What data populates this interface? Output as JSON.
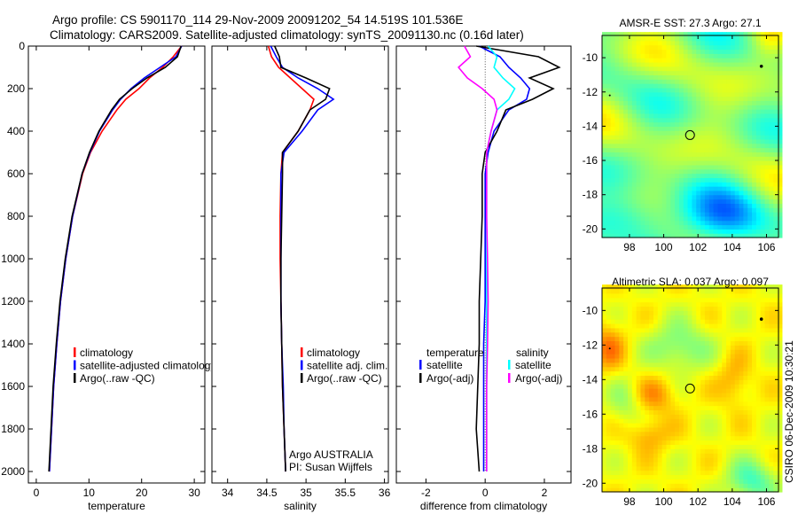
{
  "title": {
    "line1": "Argo profile: CS 5901170_114 29-Nov-2009 20091202_54 14.519S 101.536E",
    "line2": "Climatology: CARS2009. Satellite-adjusted climatology: synTS_20091130.nc (0.16d later)"
  },
  "colors": {
    "climatology": "#ff0000",
    "satellite": "#0000ff",
    "argo": "#000000",
    "sal_satellite": "#00ffff",
    "sal_argo": "#ff00ff"
  },
  "chart_data": [
    {
      "type": "line",
      "id": "temperature",
      "xlabel": "temperature",
      "ylabel": "",
      "xlim": [
        -1.5,
        32
      ],
      "ylim": [
        2054,
        0
      ],
      "xticks": [
        0,
        10,
        20,
        30
      ],
      "yticks": [
        0,
        200,
        400,
        600,
        800,
        1000,
        1200,
        1400,
        1600,
        1800,
        2000
      ],
      "depth": [
        0,
        50,
        100,
        150,
        200,
        250,
        300,
        400,
        500,
        600,
        800,
        1000,
        1200,
        1400,
        1600,
        1800,
        2000
      ],
      "series": [
        {
          "name": "climatology",
          "color": "#ff0000",
          "values": [
            27.6,
            26,
            24,
            21.5,
            19.5,
            17,
            15.3,
            12.5,
            10.3,
            8.8,
            6.9,
            5.6,
            4.6,
            3.9,
            3.3,
            2.9,
            2.5
          ]
        },
        {
          "name": "satellite-adjusted climatology",
          "color": "#0000ff",
          "values": [
            27.6,
            26.5,
            23.5,
            20.5,
            18,
            16,
            14.5,
            12,
            10.2,
            8.7,
            6.9,
            5.6,
            4.6,
            3.9,
            3.3,
            2.9,
            2.5
          ]
        },
        {
          "name": "Argo(..raw -QC)",
          "color": "#000000",
          "values": [
            27.5,
            26.8,
            24.5,
            21,
            18.2,
            15.8,
            14.3,
            11.9,
            10.1,
            8.7,
            6.8,
            5.5,
            4.5,
            3.8,
            3.2,
            2.8,
            2.4
          ]
        }
      ],
      "legend": [
        "climatology",
        "satellite-adjusted climatology",
        "Argo(..raw -QC)"
      ]
    },
    {
      "type": "line",
      "id": "salinity",
      "xlabel": "salinity",
      "xlim": [
        33.8,
        36.05
      ],
      "ylim": [
        2054,
        0
      ],
      "xticks": [
        34,
        34.5,
        35,
        35.5,
        36
      ],
      "depth": [
        0,
        50,
        100,
        150,
        200,
        250,
        300,
        400,
        500,
        600,
        800,
        1000,
        1200,
        1400,
        1600,
        1800,
        2000
      ],
      "series": [
        {
          "name": "climatology",
          "color": "#ff0000",
          "values": [
            34.52,
            34.56,
            34.65,
            34.8,
            34.95,
            35.1,
            35.05,
            34.9,
            34.7,
            34.68,
            34.67,
            34.67,
            34.68,
            34.69,
            34.7,
            34.72,
            34.74
          ]
        },
        {
          "name": "satellite adj. clim.",
          "color": "#0000ff",
          "values": [
            34.55,
            34.62,
            34.7,
            34.9,
            35.15,
            35.35,
            35.15,
            34.95,
            34.72,
            34.68,
            34.68,
            34.68,
            34.68,
            34.69,
            34.71,
            34.72,
            34.74
          ]
        },
        {
          "name": "Argo(..raw -QC)",
          "color": "#000000",
          "values": [
            34.6,
            34.66,
            34.68,
            35.0,
            35.3,
            35.25,
            35.05,
            34.9,
            34.7,
            34.7,
            34.69,
            34.68,
            34.68,
            34.69,
            34.7,
            34.72,
            34.74
          ]
        }
      ],
      "legend": [
        "climatology",
        "satellite adj. clim.",
        "Argo(..raw -QC)"
      ],
      "annotation": [
        "Argo AUSTRALIA",
        "PI: Susan Wijffels"
      ]
    },
    {
      "type": "line",
      "id": "difference",
      "xlabel": "difference from climatology",
      "xlim": [
        -3,
        2.9
      ],
      "ylim": [
        2054,
        0
      ],
      "xticks": [
        -2,
        0,
        2
      ],
      "depth": [
        0,
        50,
        100,
        150,
        200,
        250,
        300,
        400,
        500,
        600,
        800,
        1000,
        1200,
        1400,
        1600,
        1800,
        2000
      ],
      "series": [
        {
          "name": "temperature satellite",
          "color": "#0000ff",
          "values": [
            -0.2,
            0.5,
            0.8,
            1.2,
            1.5,
            1.4,
            0.8,
            0.3,
            0.1,
            0,
            0,
            0,
            0,
            -0.05,
            -0.05,
            -0.05,
            -0.05
          ]
        },
        {
          "name": "temperature Argo(-adj)",
          "color": "#000000",
          "values": [
            -0.3,
            1.8,
            2.5,
            1.5,
            2.3,
            1.6,
            0.7,
            0.4,
            0,
            -0.1,
            -0.1,
            -0.15,
            -0.2,
            -0.2,
            -0.25,
            -0.3,
            -0.2
          ]
        },
        {
          "name": "salinity satellite",
          "color": "#00ffff",
          "values": [
            0.1,
            0.4,
            0.3,
            0.6,
            1.0,
            0.8,
            0.4,
            0.2,
            0.05,
            0.05,
            0.05,
            0.05,
            0.05,
            0.05,
            0.05,
            0.05,
            0.05
          ]
        },
        {
          "name": "salinity Argo(-adj)",
          "color": "#ff00ff",
          "values": [
            -0.7,
            -0.5,
            -0.9,
            -0.6,
            -0.1,
            0.3,
            0.4,
            0.2,
            0.05,
            0.05,
            0.05,
            0.08,
            0.1,
            0.08,
            0.05,
            0.05,
            0.05
          ]
        }
      ],
      "legend_headers": [
        "temperature",
        "salinity"
      ],
      "legend": [
        "satellite",
        "Argo(-adj)",
        "satellite",
        "Argo(-adj)"
      ]
    },
    {
      "type": "heatmap",
      "id": "sst_map",
      "title": "AMSR-E SST: 27.3 Argo: 27.1",
      "xlim": [
        96.4,
        106.7
      ],
      "ylim": [
        -20.5,
        -8.7
      ],
      "xticks": [
        98,
        100,
        102,
        104,
        106
      ],
      "yticks": [
        -10,
        -12,
        -14,
        -16,
        -18,
        -20
      ],
      "marker": {
        "lon": 101.536,
        "lat": -14.519
      }
    },
    {
      "type": "heatmap",
      "id": "sla_map",
      "title": "Altimetric SLA: 0.037 Argo: 0.097",
      "xlim": [
        96.4,
        106.7
      ],
      "ylim": [
        -20.5,
        -8.7
      ],
      "xticks": [
        98,
        100,
        102,
        104,
        106
      ],
      "yticks": [
        -10,
        -12,
        -14,
        -16,
        -18,
        -20
      ],
      "marker": {
        "lon": 101.536,
        "lat": -14.519
      }
    }
  ],
  "footer": "CSIRO 06-Dec-2009 10:30:21"
}
